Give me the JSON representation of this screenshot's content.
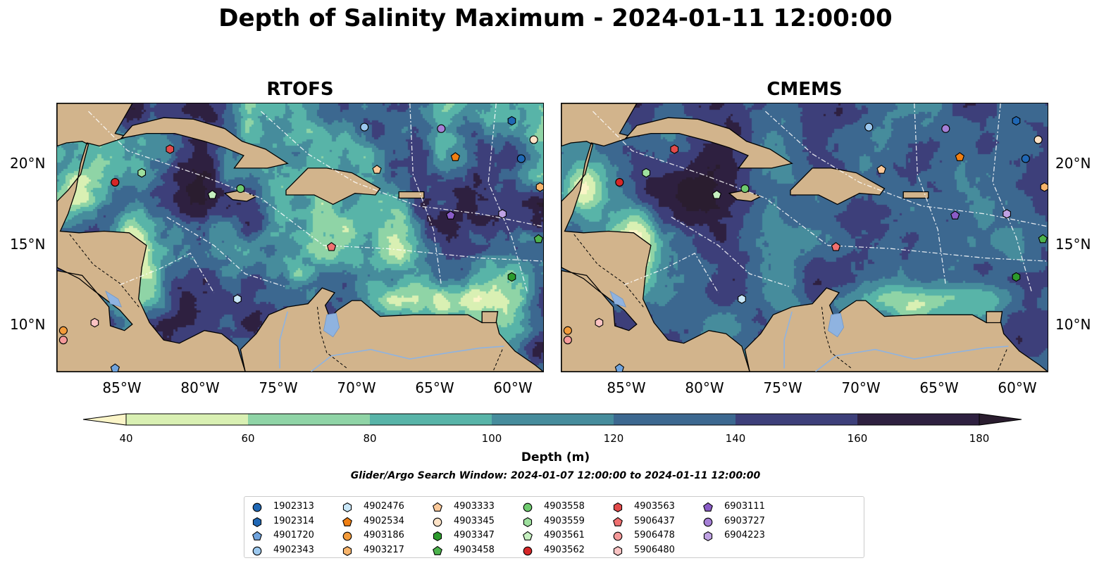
{
  "title": "Depth of Salinity Maximum - 2024-01-11 12:00:00",
  "panels": [
    {
      "title": "RTOFS"
    },
    {
      "title": "CMEMS"
    }
  ],
  "map": {
    "lon_range": [
      -89,
      -58
    ],
    "lat_range": [
      7,
      24
    ],
    "lat_ticks": [
      "20°N",
      "15°N",
      "10°N"
    ],
    "lon_ticks": [
      "85°W",
      "80°W",
      "75°W",
      "70°W",
      "65°W",
      "60°W"
    ],
    "land_color": "#d2b48c",
    "lake_color": "#8fb3e0"
  },
  "colorbar": {
    "label": "Depth (m)",
    "ticks": [
      "40",
      "60",
      "80",
      "100",
      "120",
      "140",
      "160",
      "180"
    ],
    "bin_colors": [
      "#d9f0b3",
      "#8fd4a6",
      "#58b4a8",
      "#468c9c",
      "#3c6890",
      "#3d3f7a",
      "#2e2040"
    ],
    "under_color": "#fbf5c8",
    "over_color": "#2a1d2f",
    "range": [
      40,
      180
    ],
    "extend": "both"
  },
  "search_window": "Glider/Argo Search Window: 2024-01-07 12:00:00 to 2024-01-11 12:00:00",
  "legend": [
    {
      "id": "1902313",
      "marker": "circle",
      "color": "#1f67b4"
    },
    {
      "id": "1902314",
      "marker": "hexagon",
      "color": "#1f67b4"
    },
    {
      "id": "4901720",
      "marker": "pentagon",
      "color": "#6fa3dd"
    },
    {
      "id": "4902343",
      "marker": "circle",
      "color": "#9cc8ee"
    },
    {
      "id": "4902476",
      "marker": "hexagon",
      "color": "#c8e6f7"
    },
    {
      "id": "4902534",
      "marker": "pentagon",
      "color": "#f07f12"
    },
    {
      "id": "4903186",
      "marker": "circle",
      "color": "#f39b3a"
    },
    {
      "id": "4903217",
      "marker": "hexagon",
      "color": "#f7b46b"
    },
    {
      "id": "4903333",
      "marker": "pentagon",
      "color": "#fbc99a"
    },
    {
      "id": "4903345",
      "marker": "circle",
      "color": "#fde2c6"
    },
    {
      "id": "4903347",
      "marker": "hexagon",
      "color": "#2c9a2c"
    },
    {
      "id": "4903458",
      "marker": "pentagon",
      "color": "#4db34d"
    },
    {
      "id": "4903558",
      "marker": "circle",
      "color": "#6fcb6f"
    },
    {
      "id": "4903559",
      "marker": "hexagon",
      "color": "#9ee09e"
    },
    {
      "id": "4903561",
      "marker": "pentagon",
      "color": "#c6f0c0"
    },
    {
      "id": "4903562",
      "marker": "circle",
      "color": "#d62728"
    },
    {
      "id": "4903563",
      "marker": "hexagon",
      "color": "#e24a4a"
    },
    {
      "id": "5906437",
      "marker": "pentagon",
      "color": "#f07070"
    },
    {
      "id": "5906478",
      "marker": "circle",
      "color": "#f59a9a"
    },
    {
      "id": "5906480",
      "marker": "hexagon",
      "color": "#fac3c3"
    },
    {
      "id": "6903111",
      "marker": "pentagon",
      "color": "#8a5cc7"
    },
    {
      "id": "6903727",
      "marker": "circle",
      "color": "#a57fd6"
    },
    {
      "id": "6904223",
      "marker": "hexagon",
      "color": "#bfa2e3"
    }
  ],
  "floats": [
    {
      "id": "4901720",
      "lon": -85.3,
      "lat": 7.2
    },
    {
      "id": "4903186",
      "lon": -88.6,
      "lat": 9.6
    },
    {
      "id": "5906478",
      "lon": -88.6,
      "lat": 9.0
    },
    {
      "id": "5906480",
      "lon": -86.6,
      "lat": 10.1
    },
    {
      "id": "4903562",
      "lon": -85.3,
      "lat": 19.0
    },
    {
      "id": "4903563",
      "lon": -81.8,
      "lat": 21.1
    },
    {
      "id": "4903559",
      "lon": -83.6,
      "lat": 19.6
    },
    {
      "id": "4903561",
      "lon": -79.1,
      "lat": 18.2
    },
    {
      "id": "4903558",
      "lon": -77.3,
      "lat": 18.6
    },
    {
      "id": "4902343",
      "lon": -69.4,
      "lat": 22.5
    },
    {
      "id": "4903333",
      "lon": -68.6,
      "lat": 19.8
    },
    {
      "id": "5906437",
      "lon": -71.5,
      "lat": 14.9
    },
    {
      "id": "4902476",
      "lon": -77.5,
      "lat": 11.6
    },
    {
      "id": "6903727",
      "lon": -64.5,
      "lat": 22.4
    },
    {
      "id": "4902534",
      "lon": -63.6,
      "lat": 20.6
    },
    {
      "id": "6903111",
      "lon": -63.9,
      "lat": 16.9
    },
    {
      "id": "6904223",
      "lon": -60.6,
      "lat": 17.0
    },
    {
      "id": "1902314",
      "lon": -60.0,
      "lat": 22.9
    },
    {
      "id": "4903345",
      "lon": -58.6,
      "lat": 21.7
    },
    {
      "id": "1902313",
      "lon": -59.4,
      "lat": 20.5
    },
    {
      "id": "4903217",
      "lon": -58.2,
      "lat": 18.7
    },
    {
      "id": "4903458",
      "lon": -58.3,
      "lat": 15.4
    },
    {
      "id": "4903347",
      "lon": -60.0,
      "lat": 13.0
    }
  ]
}
